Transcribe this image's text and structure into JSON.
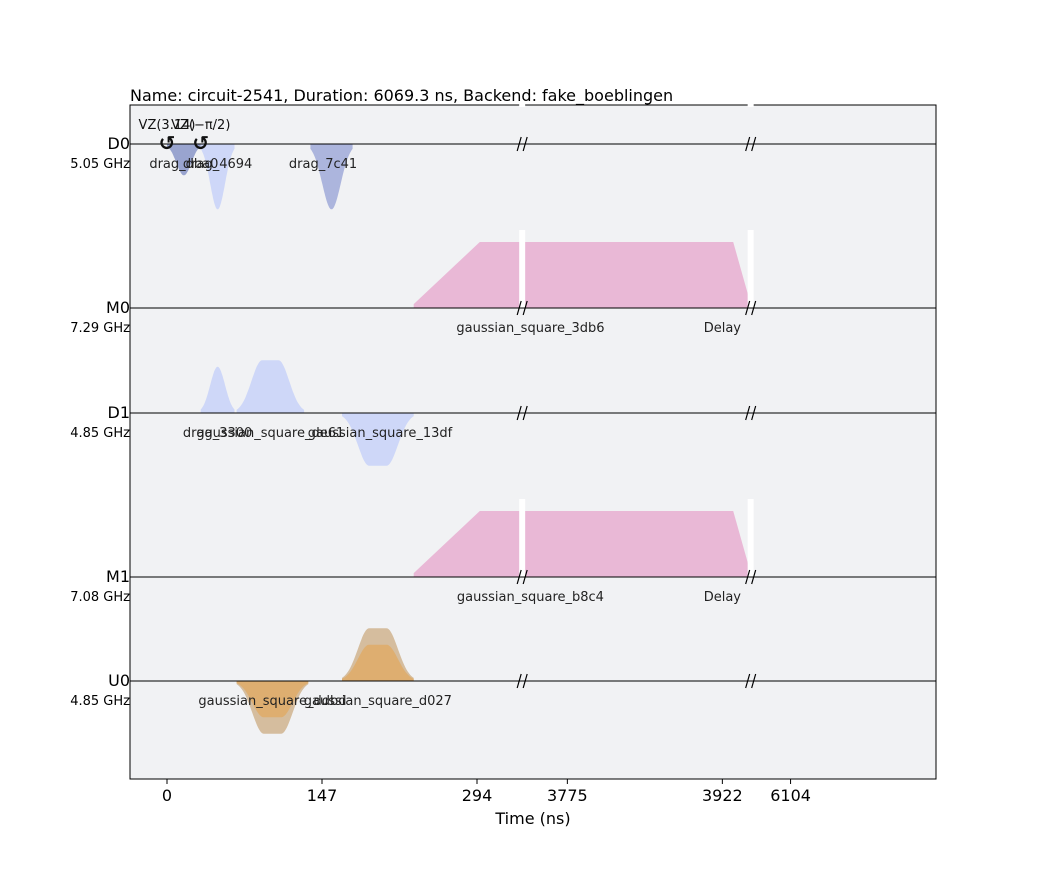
{
  "chart_data": {
    "type": "pulse_schedule",
    "title": "Name: circuit-2541, Duration: 6069.3 ns, Backend: fake_boeblingen",
    "xlabel": "Time (ns)",
    "ylabel": "",
    "xlim": [
      -32,
      6104
    ],
    "x_ticks": [
      {
        "value": 0,
        "label": "0"
      },
      {
        "value": 147,
        "label": "147"
      },
      {
        "value": 294,
        "label": "294"
      },
      {
        "value": 3775,
        "label": "3775"
      },
      {
        "value": 3922,
        "label": "3922"
      },
      {
        "value": 6104,
        "label": "6104"
      }
    ],
    "axis_breaks": [
      {
        "start": 334,
        "end": 3735
      },
      {
        "start": 3946,
        "end": 6069
      }
    ],
    "grid": false,
    "channels": [
      {
        "name": "D0",
        "freq": "5.05 GHz",
        "phase_ops": [
          {
            "t": 0,
            "label": "VZ(3.14)"
          },
          {
            "t": 32,
            "label": "VZ(−π/2)"
          }
        ],
        "pulses": [
          {
            "label": "drag_dba0",
            "shape": "gauss",
            "t0": 0,
            "t1": 32,
            "amp": -0.95,
            "color": "#8a96c8",
            "label_t": 16
          },
          {
            "label": "drag_4694",
            "shape": "gauss",
            "t0": 32,
            "t1": 64,
            "amp": -1.98,
            "color": "#c8d2f8",
            "label_t": 48
          },
          {
            "label": "drag_7c41",
            "shape": "gauss",
            "t0": 136,
            "t1": 176,
            "amp": -1.98,
            "color": "#a0aad8",
            "label_t": 148
          }
        ]
      },
      {
        "name": "M0",
        "freq": "7.29 GHz",
        "phase_ops": [],
        "pulses": [
          {
            "label": "gaussian_square_3db6",
            "shape": "gsquare",
            "t0": 234,
            "t1": 3995,
            "amp": 2.0,
            "color": "#e8aed0",
            "label_t": 3740
          }
        ],
        "delays": [
          {
            "label": "Delay",
            "t": 3922
          }
        ]
      },
      {
        "name": "D1",
        "freq": "4.85 GHz",
        "phase_ops": [],
        "pulses": [
          {
            "label": "drag_3300",
            "shape": "gauss",
            "t0": 32,
            "t1": 64,
            "amp": 1.4,
            "color": "#c8d2f8",
            "label_t": 48
          },
          {
            "label": "gaussian_square_de61",
            "shape": "gsquare_small",
            "t0": 66,
            "t1": 130,
            "amp": 1.6,
            "color": "#c8d2f8",
            "label_t": 98
          },
          {
            "label": "gaussian_square_13df",
            "shape": "gsquare_small",
            "t0": 166,
            "t1": 234,
            "amp": -1.6,
            "color": "#c8d2f8",
            "label_t": 202
          }
        ]
      },
      {
        "name": "M1",
        "freq": "7.08 GHz",
        "phase_ops": [],
        "pulses": [
          {
            "label": "gaussian_square_b8c4",
            "shape": "gsquare",
            "t0": 234,
            "t1": 3995,
            "amp": 2.0,
            "color": "#e8aed0",
            "label_t": 3740
          }
        ],
        "delays": [
          {
            "label": "Delay",
            "t": 3922
          }
        ]
      },
      {
        "name": "U0",
        "freq": "4.85 GHz",
        "phase_ops": [],
        "pulses": [
          {
            "label": "gaussian_square_ddbd",
            "shape": "gsquare_small_two",
            "t0": 66,
            "t1": 134,
            "amp": -1.6,
            "amp2": -1.1,
            "color": "#d0b48e",
            "color2": "#e0aa60",
            "label_t": 100
          },
          {
            "label": "gaussian_square_d027",
            "shape": "gsquare_small_two",
            "t0": 166,
            "t1": 234,
            "amp": 1.6,
            "amp2": 1.1,
            "color": "#d0b48e",
            "color2": "#e0aa60",
            "label_t": 200
          }
        ]
      }
    ]
  }
}
